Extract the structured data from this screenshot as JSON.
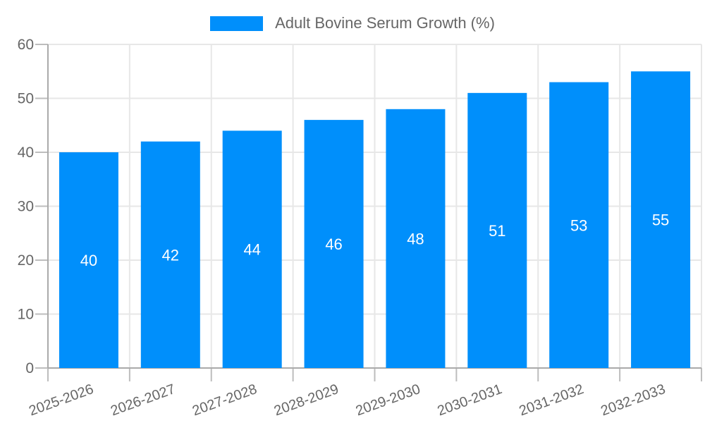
{
  "legend": {
    "position": "top",
    "swatch_shape": "rect"
  },
  "chart_data": {
    "type": "bar",
    "series_name": "Adult Bovine Serum Growth (%)",
    "categories": [
      "2025-2026",
      "2026-2027",
      "2027-2028",
      "2028-2029",
      "2029-2030",
      "2030-2031",
      "2031-2032",
      "2032-2033"
    ],
    "values": [
      40,
      42,
      44,
      46,
      48,
      51,
      53,
      55
    ],
    "title": "",
    "xlabel": "",
    "ylabel": "",
    "ylim": [
      0,
      60
    ],
    "yticks": [
      0,
      10,
      20,
      30,
      40,
      50,
      60
    ],
    "grid": true,
    "legend_position": "top",
    "value_labels_position": "inside-center",
    "x_tick_label_rotation_deg": -20
  },
  "colors": {
    "bar": "#008FFB",
    "grid": "#e7e7e7",
    "axis_line": "#aaaaaa",
    "tick_mark": "#bdbdbd",
    "axis_text": "#666666",
    "value_label_text": "#ffffff",
    "background": "#ffffff"
  }
}
